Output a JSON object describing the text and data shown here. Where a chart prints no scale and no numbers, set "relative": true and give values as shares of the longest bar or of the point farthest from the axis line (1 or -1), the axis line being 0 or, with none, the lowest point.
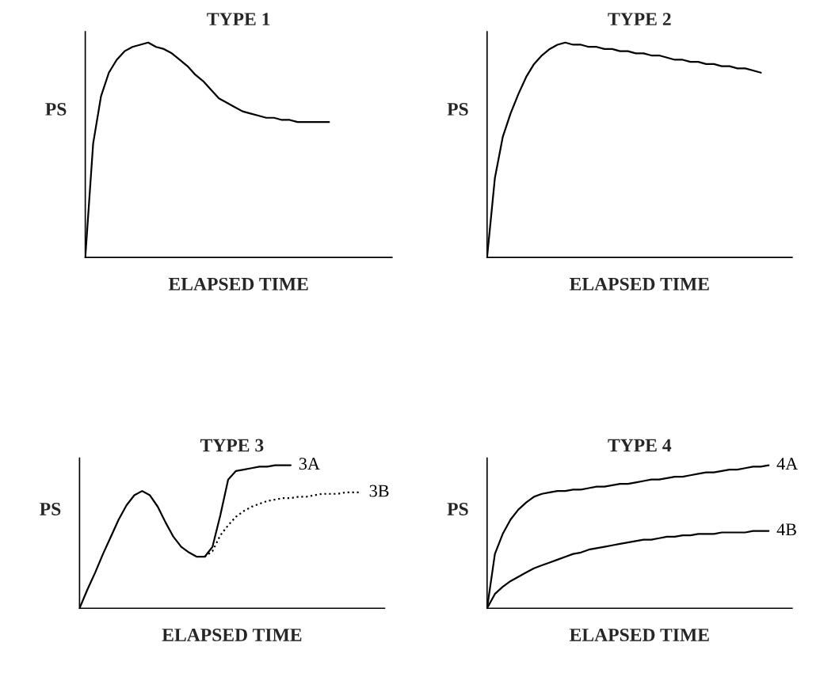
{
  "chart_data": [
    {
      "type": "line",
      "title": "TYPE 1",
      "xlabel": "ELAPSED TIME",
      "ylabel": "PS",
      "relative": true,
      "tick_labels": false,
      "categories": [
        null,
        null,
        null,
        null,
        null,
        null,
        null,
        null,
        null,
        null,
        null,
        null,
        null,
        null,
        null,
        null,
        null,
        null,
        null,
        null,
        null,
        null,
        null,
        null,
        null,
        null,
        null,
        null,
        null,
        null,
        null,
        null,
        null,
        null,
        null,
        null,
        null,
        null,
        null,
        null
      ],
      "series": [
        {
          "color": "#000000",
          "values": [
            0,
            0.53,
            0.75,
            0.86,
            0.92,
            0.96,
            0.98,
            0.99,
            1.0,
            0.98,
            0.97,
            0.95,
            0.92,
            0.89,
            0.85,
            0.82,
            0.78,
            0.74,
            0.72,
            0.7,
            0.68,
            0.67,
            0.66,
            0.65,
            0.65,
            0.64,
            0.64,
            0.63,
            0.63,
            0.63,
            0.63,
            0.63,
            null,
            null,
            null,
            null,
            null,
            null,
            null,
            null
          ]
        }
      ]
    },
    {
      "type": "line",
      "title": "TYPE 2",
      "xlabel": "ELAPSED TIME",
      "ylabel": "PS",
      "relative": true,
      "tick_labels": false,
      "categories": [
        null,
        null,
        null,
        null,
        null,
        null,
        null,
        null,
        null,
        null,
        null,
        null,
        null,
        null,
        null,
        null,
        null,
        null,
        null,
        null,
        null,
        null,
        null,
        null,
        null,
        null,
        null,
        null,
        null,
        null,
        null,
        null,
        null,
        null,
        null,
        null,
        null,
        null,
        null,
        null
      ],
      "series": [
        {
          "color": "#000000",
          "values": [
            0,
            0.37,
            0.56,
            0.67,
            0.76,
            0.84,
            0.9,
            0.94,
            0.97,
            0.99,
            1.0,
            0.99,
            0.99,
            0.98,
            0.98,
            0.97,
            0.97,
            0.96,
            0.96,
            0.95,
            0.95,
            0.94,
            0.94,
            0.93,
            0.92,
            0.92,
            0.91,
            0.91,
            0.9,
            0.9,
            0.89,
            0.89,
            0.88,
            0.88,
            0.87,
            0.86,
            null,
            null,
            null,
            null
          ]
        }
      ]
    },
    {
      "type": "line",
      "title": "TYPE 3",
      "xlabel": "ELAPSED TIME",
      "ylabel": "PS",
      "relative": true,
      "tick_labels": false,
      "categories": [
        null,
        null,
        null,
        null,
        null,
        null,
        null,
        null,
        null,
        null,
        null,
        null,
        null,
        null,
        null,
        null,
        null,
        null,
        null,
        null,
        null,
        null,
        null,
        null,
        null,
        null,
        null,
        null,
        null,
        null,
        null,
        null,
        null,
        null,
        null,
        null,
        null,
        null,
        null,
        null
      ],
      "series": [
        {
          "name": "3A",
          "color": "#000000",
          "line_style": "solid",
          "values": [
            0,
            0.13,
            0.25,
            0.38,
            0.5,
            0.62,
            0.72,
            0.79,
            0.82,
            0.79,
            0.71,
            0.6,
            0.5,
            0.43,
            0.39,
            0.36,
            0.36,
            0.43,
            0.65,
            0.9,
            0.96,
            0.97,
            0.98,
            0.99,
            0.99,
            1.0,
            1.0,
            1.0,
            null,
            null,
            null,
            null,
            null,
            null,
            null,
            null,
            null,
            null,
            null,
            null
          ]
        },
        {
          "name": "3B",
          "color": "#000000",
          "line_style": "dotted",
          "values": [
            null,
            null,
            null,
            null,
            null,
            null,
            null,
            null,
            null,
            null,
            null,
            null,
            null,
            null,
            null,
            null,
            0.36,
            0.4,
            0.51,
            0.58,
            0.64,
            0.68,
            0.71,
            0.73,
            0.75,
            0.76,
            0.77,
            0.77,
            0.78,
            0.78,
            0.79,
            0.8,
            0.8,
            0.8,
            0.81,
            0.81,
            0.81,
            null,
            null,
            null
          ]
        }
      ]
    },
    {
      "type": "line",
      "title": "TYPE 4",
      "xlabel": "ELAPSED TIME",
      "ylabel": "PS",
      "relative": true,
      "tick_labels": false,
      "categories": [
        null,
        null,
        null,
        null,
        null,
        null,
        null,
        null,
        null,
        null,
        null,
        null,
        null,
        null,
        null,
        null,
        null,
        null,
        null,
        null,
        null,
        null,
        null,
        null,
        null,
        null,
        null,
        null,
        null,
        null,
        null,
        null,
        null,
        null,
        null,
        null,
        null,
        null,
        null,
        null
      ],
      "series": [
        {
          "name": "4A",
          "color": "#000000",
          "values": [
            0,
            0.38,
            0.52,
            0.62,
            0.69,
            0.74,
            0.78,
            0.8,
            0.81,
            0.82,
            0.82,
            0.83,
            0.83,
            0.84,
            0.85,
            0.85,
            0.86,
            0.87,
            0.87,
            0.88,
            0.89,
            0.9,
            0.9,
            0.91,
            0.92,
            0.92,
            0.93,
            0.94,
            0.95,
            0.95,
            0.96,
            0.97,
            0.97,
            0.98,
            0.99,
            0.99,
            1.0,
            null,
            null,
            null
          ]
        },
        {
          "name": "4B",
          "color": "#000000",
          "values": [
            0,
            0.1,
            0.15,
            0.19,
            0.22,
            0.25,
            0.28,
            0.3,
            0.32,
            0.34,
            0.36,
            0.38,
            0.39,
            0.41,
            0.42,
            0.43,
            0.44,
            0.45,
            0.46,
            0.47,
            0.48,
            0.48,
            0.49,
            0.5,
            0.5,
            0.51,
            0.51,
            0.52,
            0.52,
            0.52,
            0.53,
            0.53,
            0.53,
            0.53,
            0.54,
            0.54,
            0.54,
            null,
            null,
            null
          ]
        }
      ]
    }
  ]
}
